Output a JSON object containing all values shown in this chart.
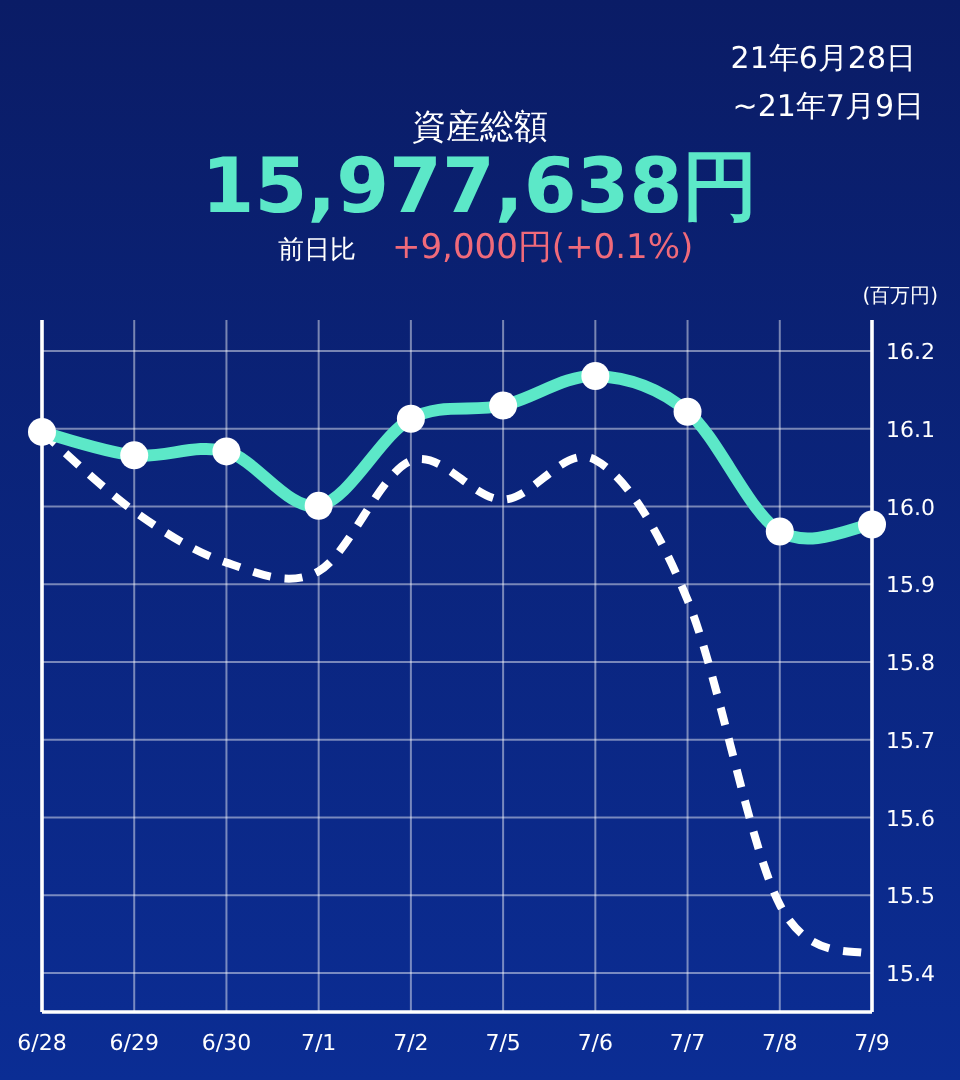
{
  "chart_data": {
    "type": "line",
    "title": "資産総額",
    "subtitle": "15,977,638円",
    "ylabel": "(百万円)",
    "annotations": [
      "21年6月28日",
      "~21年7月9日",
      "前日比",
      "+9,000円(+0.1%)"
    ],
    "categories": [
      "6/28",
      "6/29",
      "6/30",
      "7/1",
      "7/2",
      "7/5",
      "7/6",
      "7/7",
      "7/8",
      "7/9"
    ],
    "series": [
      {
        "color": "#ffffff",
        "line_style": "dashed",
        "marker": "none",
        "values": [
          16.096,
          15.994,
          15.928,
          15.917,
          16.059,
          16.009,
          16.06,
          15.88,
          15.488,
          15.423
        ]
      },
      {
        "color": "#5ce8c8",
        "line_style": "solid",
        "marker": "circle",
        "values": [
          16.096,
          16.066,
          16.071,
          16.001,
          16.113,
          16.13,
          16.168,
          16.122,
          15.968,
          15.977
        ]
      }
    ],
    "ylim": [
      15.35,
      16.24
    ],
    "yticks": [
      15.4,
      15.5,
      15.6,
      15.7,
      15.8,
      15.9,
      {
        "value": 16.0,
        "label": "16.0"
      },
      16.1,
      16.2
    ],
    "grid": true
  }
}
